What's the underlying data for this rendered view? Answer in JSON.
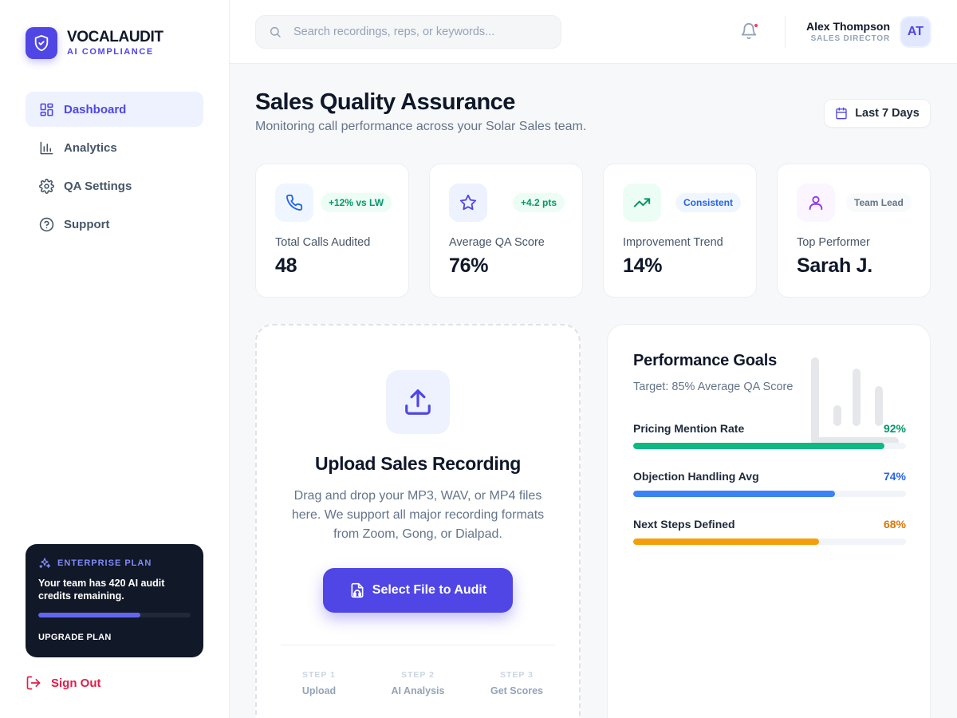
{
  "brand": {
    "name": "VOCALAUDIT",
    "tagline": "AI COMPLIANCE"
  },
  "nav": [
    {
      "label": "Dashboard",
      "icon": "dashboard-icon",
      "active": true
    },
    {
      "label": "Analytics",
      "icon": "bar-chart-icon",
      "active": false
    },
    {
      "label": "QA Settings",
      "icon": "gear-icon",
      "active": false
    },
    {
      "label": "Support",
      "icon": "help-circle-icon",
      "active": false
    }
  ],
  "plan": {
    "title": "ENTERPRISE PLAN",
    "text": "Your team has 420 AI audit credits remaining.",
    "progress": 0.67,
    "button": "UPGRADE PLAN"
  },
  "signout": "Sign Out",
  "search": {
    "placeholder": "Search recordings, reps, or keywords...",
    "value": ""
  },
  "user": {
    "name": "Alex Thompson",
    "role": "SALES DIRECTOR",
    "initials": "AT"
  },
  "page": {
    "title": "Sales Quality Assurance",
    "subtitle": "Monitoring call performance across your Solar Sales team.",
    "date_range": "Last 7 Days"
  },
  "stats": [
    {
      "label": "Total Calls Audited",
      "value": "48",
      "badge": "+12% vs LW",
      "icon": "phone-icon",
      "icon_bg": "#eff6ff",
      "icon_color": "#2563eb",
      "badge_bg": "#ecfdf5",
      "badge_color": "#059669"
    },
    {
      "label": "Average QA Score",
      "value": "76%",
      "badge": "+4.2 pts",
      "icon": "star-icon",
      "icon_bg": "#eef2ff",
      "icon_color": "#4f46e5",
      "badge_bg": "#ecfdf5",
      "badge_color": "#059669"
    },
    {
      "label": "Improvement Trend",
      "value": "14%",
      "badge": "Consistent",
      "icon": "trending-up-icon",
      "icon_bg": "#ecfdf5",
      "icon_color": "#059669",
      "badge_bg": "#eff6ff",
      "badge_color": "#2563eb"
    },
    {
      "label": "Top Performer",
      "value": "Sarah J.",
      "badge": "Team Lead",
      "icon": "user-icon",
      "icon_bg": "#faf5ff",
      "icon_color": "#9333ea",
      "badge_bg": "#f8fafc",
      "badge_color": "#64748b"
    }
  ],
  "upload": {
    "title": "Upload Sales Recording",
    "description": "Drag and drop your MP3, WAV, or MP4 files here. We support all major recording formats from Zoom, Gong, or Dialpad.",
    "button": "Select File to Audit",
    "steps": [
      {
        "num": "STEP 1",
        "name": "Upload"
      },
      {
        "num": "STEP 2",
        "name": "AI Analysis"
      },
      {
        "num": "STEP 3",
        "name": "Get Scores"
      }
    ]
  },
  "goals": {
    "title": "Performance Goals",
    "subtitle": "Target: 85% Average QA Score",
    "items": [
      {
        "name": "Pricing Mention Rate",
        "value": "92%",
        "fraction": 0.92,
        "color": "#10b981",
        "text_color": "#059669"
      },
      {
        "name": "Objection Handling Avg",
        "value": "74%",
        "fraction": 0.74,
        "color": "#3b82f6",
        "text_color": "#2563eb"
      },
      {
        "name": "Next Steps Defined",
        "value": "68%",
        "fraction": 0.68,
        "color": "#f59e0b",
        "text_color": "#d97706"
      }
    ]
  },
  "colors": {
    "accent": "#4f46e5",
    "danger": "#e11d48"
  }
}
